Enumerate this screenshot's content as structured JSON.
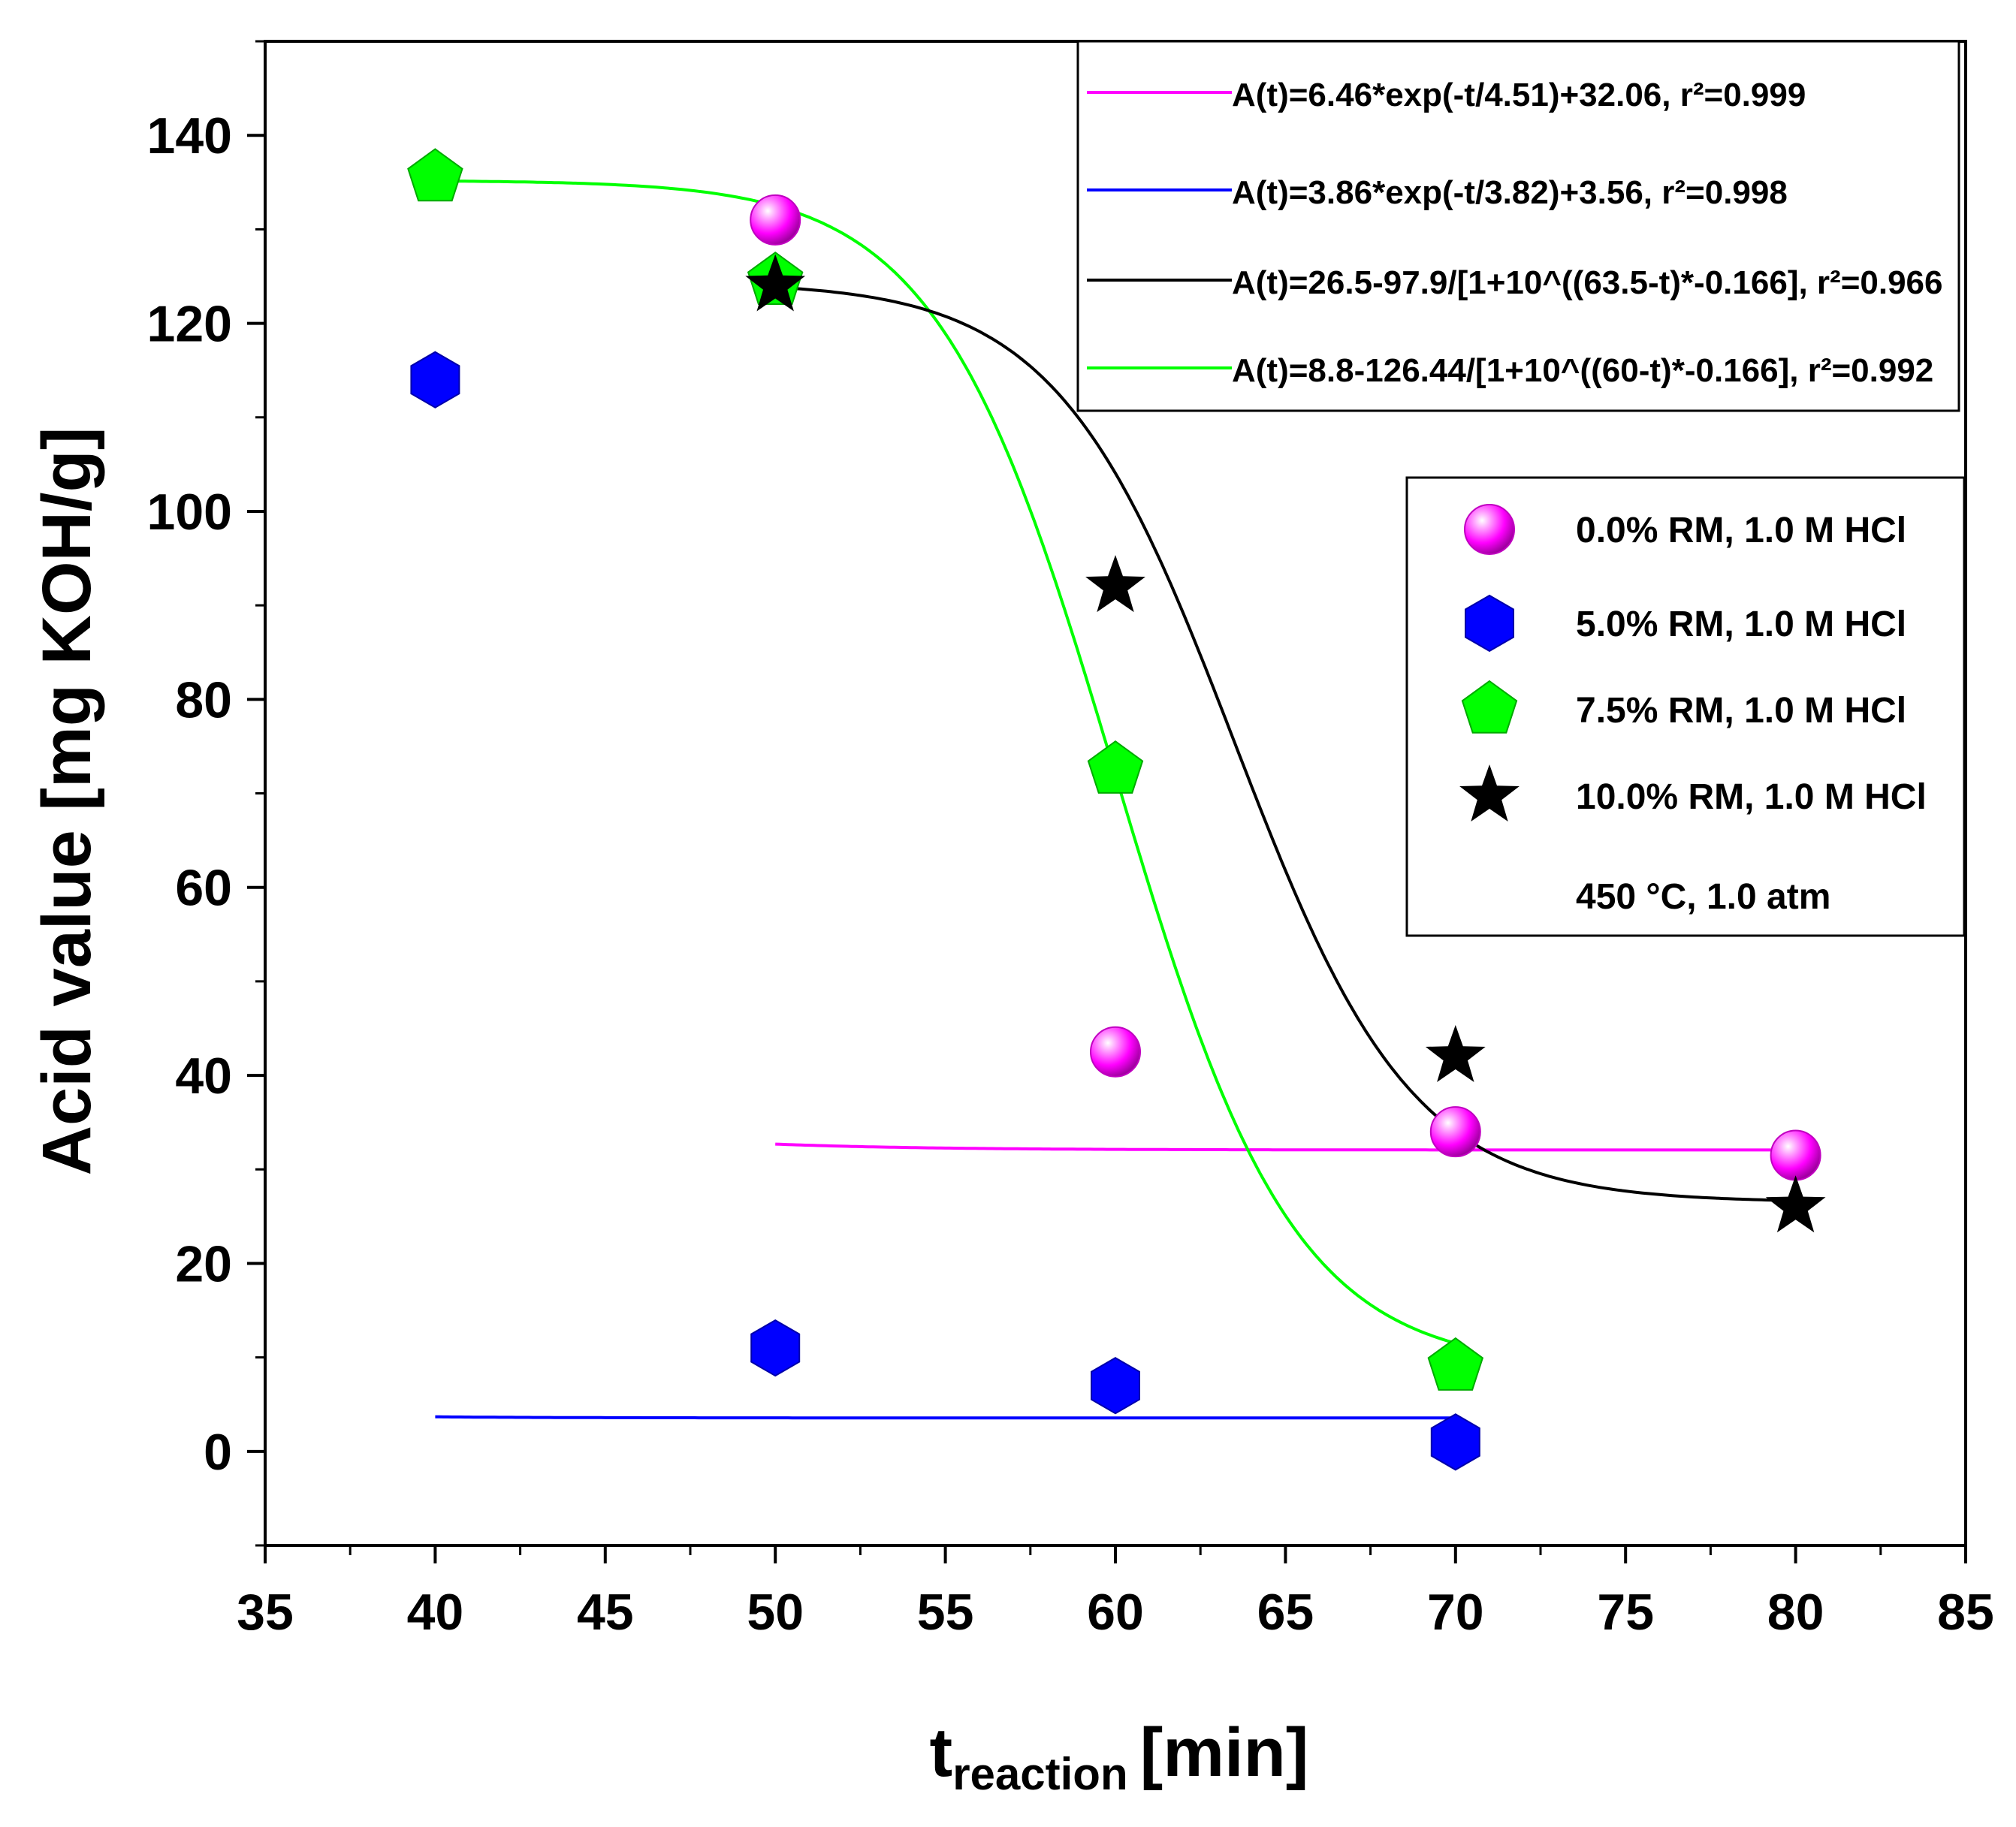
{
  "chart_data": {
    "type": "scatter",
    "xlabel_main": "t",
    "xlabel_sub": "reaction",
    "xlabel_unit": "[min]",
    "ylabel": "Acid value [mg KOH/g]",
    "xlim": [
      35,
      85
    ],
    "ylim": [
      -10,
      150
    ],
    "xticks": [
      35,
      40,
      45,
      50,
      55,
      60,
      65,
      70,
      75,
      80,
      85
    ],
    "yticks": [
      0,
      20,
      40,
      60,
      80,
      100,
      120,
      140
    ],
    "xtick_labels": [
      "35",
      "40",
      "45",
      "50",
      "55",
      "60",
      "65",
      "70",
      "75",
      "80",
      "85"
    ],
    "ytick_labels": [
      "0",
      "20",
      "40",
      "60",
      "80",
      "100",
      "120",
      "140"
    ],
    "series": [
      {
        "name": "0.0%  RM, 1.0 M HCl",
        "marker": "sphere",
        "color": "#ff00ff",
        "x": [
          50,
          60,
          70,
          80
        ],
        "y": [
          131,
          42.5,
          34,
          31.5
        ],
        "fit": {
          "label": "A(t)=6.46*exp(-t/4.51)+32.06, r²=0.999",
          "kind": "exp",
          "A": 6.46,
          "tau": 4.51,
          "c": 32.06,
          "x0": 39.5,
          "range": [
            50,
            80
          ]
        }
      },
      {
        "name": "5.0%  RM, 1.0 M HCl",
        "marker": "hexagon",
        "color": "#0000ff",
        "x": [
          40,
          50,
          60,
          70
        ],
        "y": [
          114,
          11,
          7,
          1
        ],
        "fit": {
          "label": "A(t)=3.86*exp(-t/3.82)+3.56, r²=0.998",
          "kind": "exp",
          "A": 3.86,
          "tau": 3.82,
          "c": 3.56,
          "x0": 26.63,
          "range": [
            40,
            70
          ]
        }
      },
      {
        "name": "7.5%  RM, 1.0 M HCl",
        "marker": "pentagon",
        "color": "#00ff00",
        "x": [
          40,
          50,
          60,
          70
        ],
        "y": [
          135.5,
          124.5,
          72.5,
          9
        ],
        "fit": {
          "label": "A(t)=8.8-126.44/[1+10^((60-t)*-0.166], r²=0.992",
          "kind": "logistic",
          "A1": 135.2,
          "A2": 8.8,
          "x0": 60,
          "p": 0.166,
          "range": [
            40,
            70
          ]
        }
      },
      {
        "name": "10.0%  RM, 1.0 M HCl",
        "marker": "star",
        "color": "#000000",
        "x": [
          50,
          60,
          70,
          80
        ],
        "y": [
          124,
          92,
          42,
          26
        ],
        "fit": {
          "label": "A(t)=26.5-97.9/[1+10^((63.5-t)*-0.166], r²=0.966",
          "kind": "logistic",
          "A1": 124.4,
          "A2": 26.5,
          "x0": 63.5,
          "p": 0.166,
          "range": [
            50,
            80
          ]
        }
      }
    ],
    "fit_legend_order": [
      0,
      1,
      3,
      2
    ],
    "annotation": "450 °C, 1.0 atm",
    "legend_position": "right"
  }
}
